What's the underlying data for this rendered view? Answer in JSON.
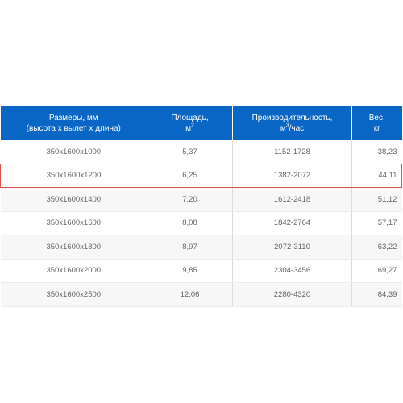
{
  "table": {
    "headers": {
      "size_line1": "Размеры, мм",
      "size_line2": "(высота х вылет х длина)",
      "area_line1": "Площадь,",
      "area_unit": "м",
      "area_sup": "2",
      "perf_line1": "Производительность,",
      "perf_unit": "м",
      "perf_sup": "3",
      "perf_suffix": "/час",
      "weight_line1": "Вес,",
      "weight_line2": "кг"
    },
    "highlighted_row_index": 1,
    "rows": [
      {
        "size": "350х1600х1000",
        "area": "5,37",
        "performance": "1152-1728",
        "weight": "38,23"
      },
      {
        "size": "350х1600х1200",
        "area": "6,25",
        "performance": "1382-2072",
        "weight": "44,11"
      },
      {
        "size": "350х1600х1400",
        "area": "7,20",
        "performance": "1612-2418",
        "weight": "51,12"
      },
      {
        "size": "350х1600х1600",
        "area": "8,08",
        "performance": "1842-2764",
        "weight": "57,17"
      },
      {
        "size": "350х1600х1800",
        "area": "8,97",
        "performance": "2072-3110",
        "weight": "63,22"
      },
      {
        "size": "350х1600х2000",
        "area": "9,85",
        "performance": "2304-3456",
        "weight": "69,27"
      },
      {
        "size": "350х1600х2500",
        "area": "12,06",
        "performance": "2280-4320",
        "weight": "84,39"
      }
    ]
  },
  "colors": {
    "header_background": "#0a66c4",
    "highlight_border": "#d9534f"
  }
}
